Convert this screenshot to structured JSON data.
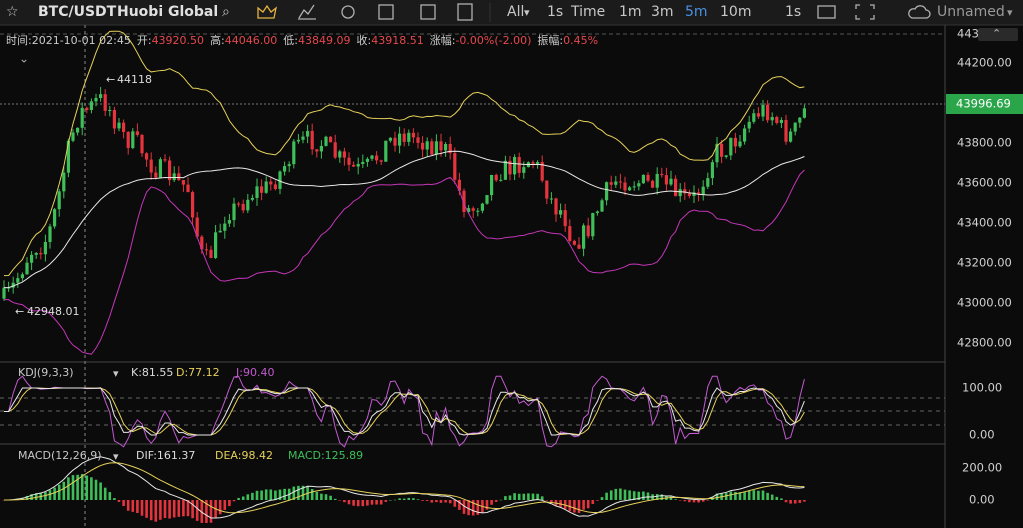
{
  "toolbar": {
    "symbol": "BTC/USDT",
    "exchange": "Huobi Global",
    "range": "All",
    "intervals": [
      "1s",
      "Time",
      "1m",
      "3m",
      "5m",
      "10m"
    ],
    "active": "5m",
    "replay": "1s",
    "layout": "Unnamed"
  },
  "info": [
    {
      "label": "时间:",
      "value": "2021-10-01 02:45"
    },
    {
      "label": "开:",
      "value": "43920.50"
    },
    {
      "label": "高:",
      "value": "44046.00"
    },
    {
      "label": "低:",
      "value": "43849.09"
    },
    {
      "label": "收:",
      "value": "43918.51"
    },
    {
      "label": "涨幅:",
      "value": "-0.00%(-2.00)"
    },
    {
      "label": "振幅:",
      "value": "0.45%"
    }
  ],
  "annotations": {
    "high": "44118",
    "low": "42948.01"
  },
  "price_axis": {
    "top_partial": "443",
    "labels": [
      "44200.00",
      "44000.00",
      "43800.00",
      "43600.00",
      "43400.00",
      "43200.00",
      "43000.00",
      "42800.00"
    ],
    "current": "43996.69"
  },
  "kdj": {
    "title": "KDJ(9,3,3)",
    "k": "K:81.55",
    "d": "D:77.12",
    "j": "J:90.40",
    "axis": [
      "100.00",
      "0.00"
    ]
  },
  "macd": {
    "title": "MACD(12,26,9)",
    "dif": "DIF:161.37",
    "dea": "DEA:98.42",
    "macd": "MACD:125.89",
    "axis": [
      "200.00",
      "0.00"
    ]
  }
}
